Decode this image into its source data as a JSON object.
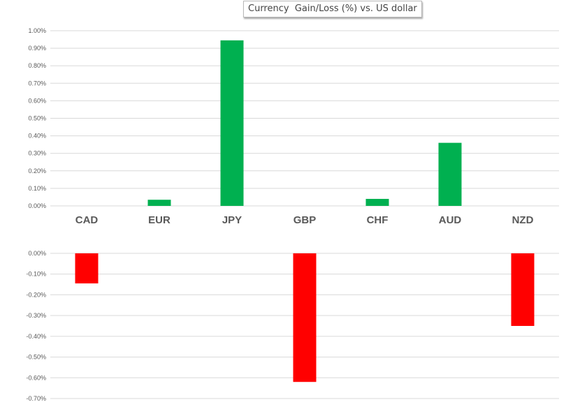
{
  "chart_data": [
    {
      "type": "bar",
      "title": "Currency  Gain/Loss (%) vs. US dollar",
      "categories": [
        "CAD",
        "EUR",
        "JPY",
        "GBP",
        "CHF",
        "AUD",
        "NZD"
      ],
      "values": [
        0,
        0.035,
        0.945,
        0,
        0.04,
        0.36,
        0
      ],
      "color": "#00b050",
      "ylim": [
        0,
        1.0
      ],
      "yticks": [
        "0.00%",
        "0.10%",
        "0.20%",
        "0.30%",
        "0.40%",
        "0.50%",
        "0.60%",
        "0.70%",
        "0.80%",
        "0.90%",
        "1.00%"
      ],
      "grid": true
    },
    {
      "type": "bar",
      "categories": [
        "CAD",
        "EUR",
        "JPY",
        "GBP",
        "CHF",
        "AUD",
        "NZD"
      ],
      "values": [
        -0.145,
        0,
        0,
        -0.62,
        0,
        0,
        -0.35
      ],
      "color": "#ff0000",
      "ylim": [
        -0.7,
        0
      ],
      "yticks": [
        "0.00%",
        "-0.10%",
        "-0.20%",
        "-0.30%",
        "-0.40%",
        "-0.50%",
        "-0.60%",
        "-0.70%"
      ],
      "grid": true
    }
  ]
}
